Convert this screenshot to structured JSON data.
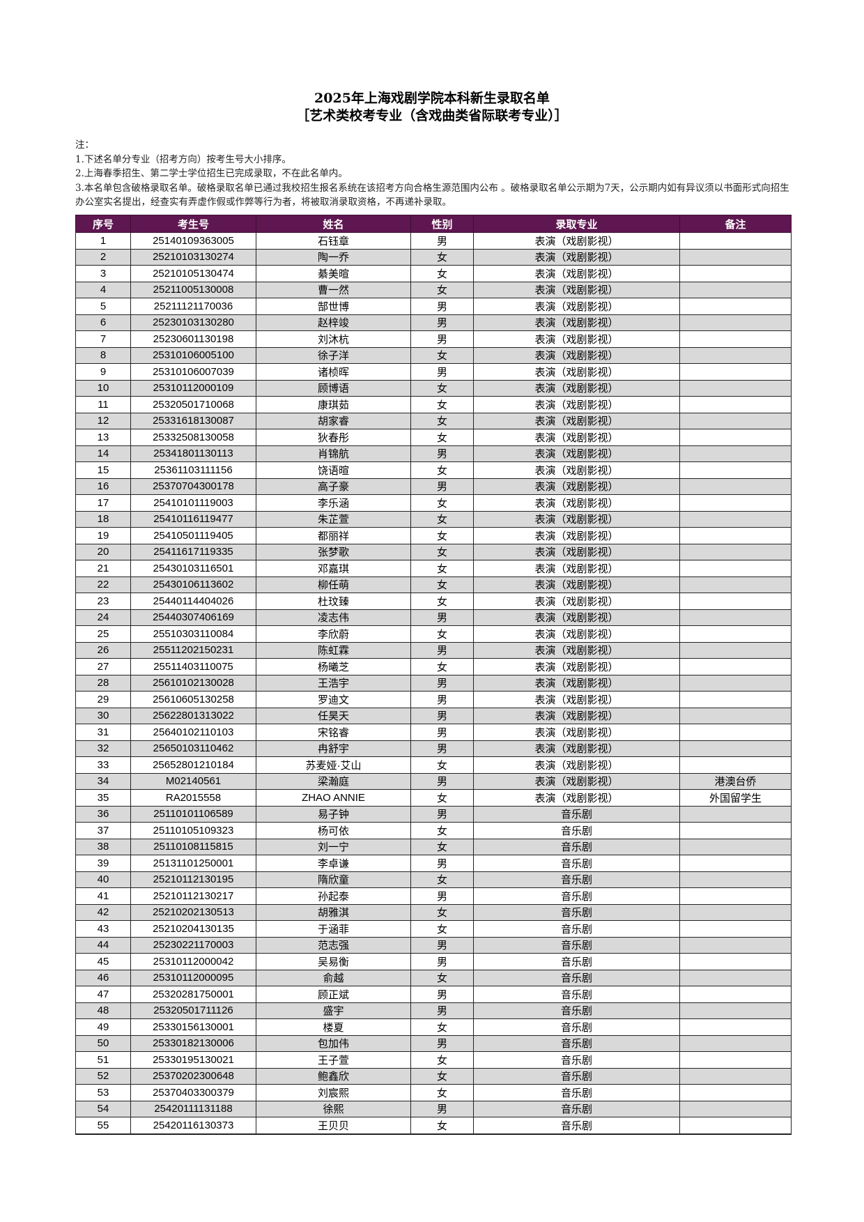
{
  "title": "2025年上海戏剧学院本科新生录取名单",
  "subtitle": "［艺术类校考专业（含戏曲类省际联考专业）］",
  "notes": {
    "heading": "注：",
    "items": [
      "1.下述名单分专业（招考方向）按考生号大小排序。",
      "2.上海春季招生、第二学士学位招生已完成录取，不在此名单内。",
      "3.本名单包含破格录取名单。破格录取名单已通过我校招生报名系统在该招考方向合格生源范围内公布 。破格录取名单公示期为7天，公示期内如有异议须以书面形式向招生办公室实名提出，经查实有弄虚作假或作弊等行为者，将被取消录取资格，不再递补录取。"
    ]
  },
  "colors": {
    "header_bg": "#5e1750",
    "header_text": "#ffffff",
    "stripe": "#d9d9d9"
  },
  "table": {
    "headers": [
      "序号",
      "考生号",
      "姓名",
      "性别",
      "录取专业",
      "备注"
    ],
    "rows": [
      [
        "1",
        "25140109363005",
        "石钰章",
        "男",
        "表演（戏剧影视）",
        ""
      ],
      [
        "2",
        "25210103130274",
        "陶一乔",
        "女",
        "表演（戏剧影视）",
        ""
      ],
      [
        "3",
        "25210105130474",
        "綦美暄",
        "女",
        "表演（戏剧影视）",
        ""
      ],
      [
        "4",
        "25211005130008",
        "曹一然",
        "女",
        "表演（戏剧影视）",
        ""
      ],
      [
        "5",
        "25211121170036",
        "郜世博",
        "男",
        "表演（戏剧影视）",
        ""
      ],
      [
        "6",
        "25230103130280",
        "赵梓竣",
        "男",
        "表演（戏剧影视）",
        ""
      ],
      [
        "7",
        "25230601130198",
        "刘沐杭",
        "男",
        "表演（戏剧影视）",
        ""
      ],
      [
        "8",
        "25310106005100",
        "徐子洋",
        "女",
        "表演（戏剧影视）",
        ""
      ],
      [
        "9",
        "25310106007039",
        "诸桢晖",
        "男",
        "表演（戏剧影视）",
        ""
      ],
      [
        "10",
        "25310112000109",
        "顾博语",
        "女",
        "表演（戏剧影视）",
        ""
      ],
      [
        "11",
        "25320501710068",
        "康琪茹",
        "女",
        "表演（戏剧影视）",
        ""
      ],
      [
        "12",
        "25331618130087",
        "胡家睿",
        "女",
        "表演（戏剧影视）",
        ""
      ],
      [
        "13",
        "25332508130058",
        "狄春彤",
        "女",
        "表演（戏剧影视）",
        ""
      ],
      [
        "14",
        "25341801130113",
        "肖锦航",
        "男",
        "表演（戏剧影视）",
        ""
      ],
      [
        "15",
        "25361103111156",
        "饶语暄",
        "女",
        "表演（戏剧影视）",
        ""
      ],
      [
        "16",
        "25370704300178",
        "高子豪",
        "男",
        "表演（戏剧影视）",
        ""
      ],
      [
        "17",
        "25410101119003",
        "李乐涵",
        "女",
        "表演（戏剧影视）",
        ""
      ],
      [
        "18",
        "25410116119477",
        "朱芷萱",
        "女",
        "表演（戏剧影视）",
        ""
      ],
      [
        "19",
        "25410501119405",
        "都丽祥",
        "女",
        "表演（戏剧影视）",
        ""
      ],
      [
        "20",
        "25411617119335",
        "张梦歌",
        "女",
        "表演（戏剧影视）",
        ""
      ],
      [
        "21",
        "25430103116501",
        "邓嘉琪",
        "女",
        "表演（戏剧影视）",
        ""
      ],
      [
        "22",
        "25430106113602",
        "柳任萌",
        "女",
        "表演（戏剧影视）",
        ""
      ],
      [
        "23",
        "25440114404026",
        "杜玟臻",
        "女",
        "表演（戏剧影视）",
        ""
      ],
      [
        "24",
        "25440307406169",
        "凌志伟",
        "男",
        "表演（戏剧影视）",
        ""
      ],
      [
        "25",
        "25510303110084",
        "李欣蔚",
        "女",
        "表演（戏剧影视）",
        ""
      ],
      [
        "26",
        "25511202150231",
        "陈虹霖",
        "男",
        "表演（戏剧影视）",
        ""
      ],
      [
        "27",
        "25511403110075",
        "杨曦芝",
        "女",
        "表演（戏剧影视）",
        ""
      ],
      [
        "28",
        "25610102130028",
        "王浩宇",
        "男",
        "表演（戏剧影视）",
        ""
      ],
      [
        "29",
        "25610605130258",
        "罗迪文",
        "男",
        "表演（戏剧影视）",
        ""
      ],
      [
        "30",
        "25622801313022",
        "任昊天",
        "男",
        "表演（戏剧影视）",
        ""
      ],
      [
        "31",
        "25640102110103",
        "宋铭睿",
        "男",
        "表演（戏剧影视）",
        ""
      ],
      [
        "32",
        "25650103110462",
        "冉舒宇",
        "男",
        "表演（戏剧影视）",
        ""
      ],
      [
        "33",
        "25652801210184",
        "苏麦娅·艾山",
        "女",
        "表演（戏剧影视）",
        ""
      ],
      [
        "34",
        "M02140561",
        "梁瀚庭",
        "男",
        "表演（戏剧影视）",
        "港澳台侨"
      ],
      [
        "35",
        "RA2015558",
        "ZHAO ANNIE",
        "女",
        "表演（戏剧影视）",
        "外国留学生"
      ],
      [
        "36",
        "25110101106589",
        "易子钟",
        "男",
        "音乐剧",
        ""
      ],
      [
        "37",
        "25110105109323",
        "杨可依",
        "女",
        "音乐剧",
        ""
      ],
      [
        "38",
        "25110108115815",
        "刘一宁",
        "女",
        "音乐剧",
        ""
      ],
      [
        "39",
        "25131101250001",
        "李卓谦",
        "男",
        "音乐剧",
        ""
      ],
      [
        "40",
        "25210112130195",
        "隋欣童",
        "女",
        "音乐剧",
        ""
      ],
      [
        "41",
        "25210112130217",
        "孙起泰",
        "男",
        "音乐剧",
        ""
      ],
      [
        "42",
        "25210202130513",
        "胡雅淇",
        "女",
        "音乐剧",
        ""
      ],
      [
        "43",
        "25210204130135",
        "于涵菲",
        "女",
        "音乐剧",
        ""
      ],
      [
        "44",
        "25230221170003",
        "范志强",
        "男",
        "音乐剧",
        ""
      ],
      [
        "45",
        "25310112000042",
        "吴易衡",
        "男",
        "音乐剧",
        ""
      ],
      [
        "46",
        "25310112000095",
        "俞越",
        "女",
        "音乐剧",
        ""
      ],
      [
        "47",
        "25320281750001",
        "顾正斌",
        "男",
        "音乐剧",
        ""
      ],
      [
        "48",
        "25320501711126",
        "盛宇",
        "男",
        "音乐剧",
        ""
      ],
      [
        "49",
        "25330156130001",
        "楼夏",
        "女",
        "音乐剧",
        ""
      ],
      [
        "50",
        "25330182130006",
        "包加伟",
        "男",
        "音乐剧",
        ""
      ],
      [
        "51",
        "25330195130021",
        "王子萱",
        "女",
        "音乐剧",
        ""
      ],
      [
        "52",
        "25370202300648",
        "鲍鑫欣",
        "女",
        "音乐剧",
        ""
      ],
      [
        "53",
        "25370403300379",
        "刘宸熙",
        "女",
        "音乐剧",
        ""
      ],
      [
        "54",
        "25420111131188",
        "徐熙",
        "男",
        "音乐剧",
        ""
      ],
      [
        "55",
        "25420116130373",
        "王贝贝",
        "女",
        "音乐剧",
        ""
      ]
    ]
  }
}
